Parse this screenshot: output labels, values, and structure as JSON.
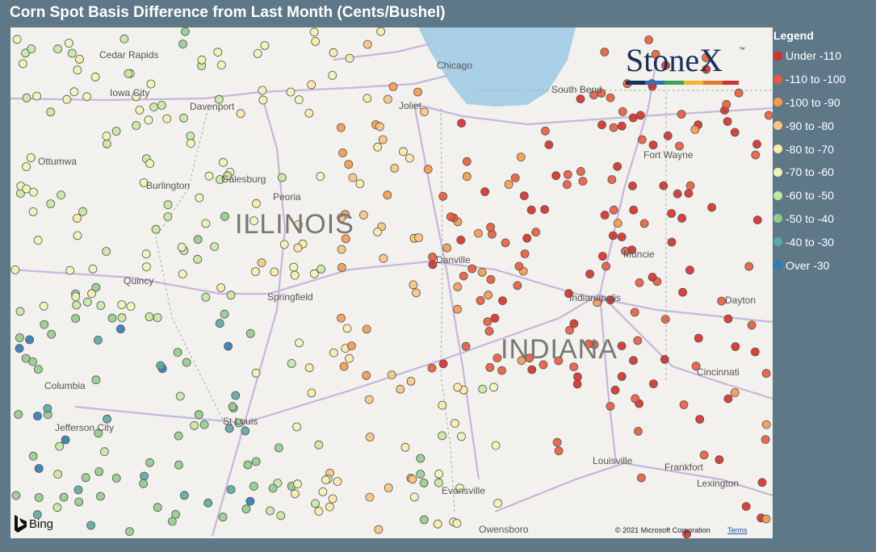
{
  "title": "Corn Spot Basis Difference from Last Month (Cents/Bushel)",
  "legend": {
    "title": "Legend",
    "items": [
      {
        "label": "Under -110",
        "color": "#d62f27"
      },
      {
        "label": "-110 to -100",
        "color": "#e85b3a"
      },
      {
        "label": "-100 to -90",
        "color": "#f79a4d"
      },
      {
        "label": "-90 to -80",
        "color": "#fcc47f"
      },
      {
        "label": "-80 to -70",
        "color": "#fee9a6"
      },
      {
        "label": "-70 to -60",
        "color": "#eef6b4"
      },
      {
        "label": "-60 to -50",
        "color": "#c8e8a0"
      },
      {
        "label": "-50 to -40",
        "color": "#94cc8d"
      },
      {
        "label": "-40 to -30",
        "color": "#5aa8a0"
      },
      {
        "label": "Over -30",
        "color": "#2c7bb6"
      }
    ]
  },
  "map": {
    "states": [
      "ILLINOIS",
      "INDIANA"
    ],
    "cities": [
      "Cedar Rapids",
      "Iowa City",
      "Davenport",
      "Ottumwa",
      "Burlington",
      "Galesburg",
      "Peoria",
      "Quincy",
      "Springfield",
      "Columbia",
      "Jefferson City",
      "St Louis",
      "Chicago",
      "Joliet",
      "South Bend",
      "Fort Wayne",
      "Danville",
      "Muncie",
      "Indianapolis",
      "Dayton",
      "Cincinnati",
      "Louisville",
      "Frankfort",
      "Lexington",
      "Evansville",
      "Owensboro"
    ],
    "logo": {
      "name": "StoneX",
      "mark": "™"
    },
    "provider": "Bing",
    "copyright": "© 2021 Microsoft Corporation",
    "terms": "Terms"
  }
}
